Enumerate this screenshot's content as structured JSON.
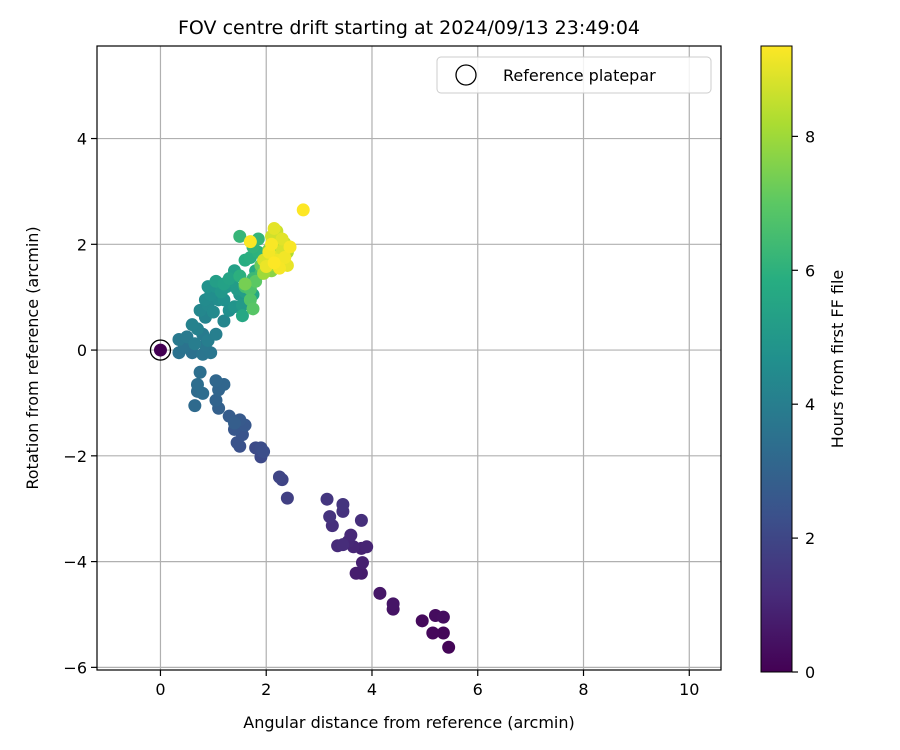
{
  "chart_data": {
    "type": "scatter",
    "title": "FOV centre drift starting at 2024/09/13 23:49:04",
    "xlabel": "Angular distance from reference (arcmin)",
    "ylabel": "Rotation from reference (arcmin)",
    "xlim": [
      -1.2,
      10.6
    ],
    "ylim": [
      -6.05,
      5.75
    ],
    "xticks": [
      0,
      2,
      4,
      6,
      8,
      10
    ],
    "yticks": [
      -6,
      -4,
      -2,
      0,
      2,
      4
    ],
    "xtick_labels": [
      "0",
      "2",
      "4",
      "6",
      "8",
      "10"
    ],
    "ytick_labels": [
      "−6",
      "−4",
      "−2",
      "0",
      "2",
      "4"
    ],
    "grid": true,
    "colorbar": {
      "label": "Hours from first FF file",
      "range": [
        0,
        9.35
      ],
      "ticks": [
        0,
        2,
        4,
        6,
        8
      ],
      "tick_labels": [
        "0",
        "2",
        "4",
        "6",
        "8"
      ],
      "colormap": "viridis"
    },
    "legend": {
      "position": "top-right",
      "entries": [
        {
          "label": "Reference platepar",
          "marker": "open-circle"
        }
      ]
    },
    "reference_point": {
      "x": 0,
      "y": 0,
      "t": 0
    },
    "points": [
      [
        5.45,
        -5.62,
        0.1
      ],
      [
        5.35,
        -5.35,
        0.15
      ],
      [
        5.15,
        -5.35,
        0.2
      ],
      [
        4.95,
        -5.12,
        0.25
      ],
      [
        5.2,
        -5.02,
        0.3
      ],
      [
        5.35,
        -5.05,
        0.35
      ],
      [
        4.4,
        -4.9,
        0.5
      ],
      [
        4.4,
        -4.8,
        0.55
      ],
      [
        4.15,
        -4.6,
        0.6
      ],
      [
        3.8,
        -4.22,
        0.75
      ],
      [
        3.7,
        -4.22,
        0.8
      ],
      [
        3.82,
        -4.02,
        0.85
      ],
      [
        3.8,
        -3.75,
        0.9
      ],
      [
        3.9,
        -3.72,
        0.95
      ],
      [
        3.65,
        -3.72,
        1.0
      ],
      [
        3.55,
        -3.62,
        1.05
      ],
      [
        3.6,
        -3.5,
        1.1
      ],
      [
        3.35,
        -3.7,
        1.15
      ],
      [
        3.45,
        -3.68,
        1.2
      ],
      [
        3.8,
        -3.22,
        1.25
      ],
      [
        3.25,
        -3.32,
        1.3
      ],
      [
        3.45,
        -3.05,
        1.35
      ],
      [
        3.2,
        -3.15,
        1.4
      ],
      [
        3.45,
        -2.92,
        1.45
      ],
      [
        3.15,
        -2.82,
        1.5
      ],
      [
        2.4,
        -2.8,
        1.8
      ],
      [
        2.3,
        -2.45,
        1.9
      ],
      [
        2.25,
        -2.4,
        1.95
      ],
      [
        1.9,
        -2.02,
        2.1
      ],
      [
        1.8,
        -1.85,
        2.15
      ],
      [
        1.9,
        -1.85,
        2.2
      ],
      [
        1.95,
        -1.92,
        2.25
      ],
      [
        1.5,
        -1.82,
        2.35
      ],
      [
        1.45,
        -1.75,
        2.4
      ],
      [
        1.55,
        -1.6,
        2.45
      ],
      [
        1.4,
        -1.5,
        2.55
      ],
      [
        1.6,
        -1.42,
        2.6
      ],
      [
        1.5,
        -1.32,
        2.65
      ],
      [
        1.3,
        -1.25,
        2.75
      ],
      [
        1.4,
        -1.38,
        2.8
      ],
      [
        1.1,
        -1.1,
        2.9
      ],
      [
        1.05,
        -0.95,
        3.0
      ],
      [
        1.1,
        -0.75,
        3.05
      ],
      [
        1.2,
        -0.65,
        3.1
      ],
      [
        1.05,
        -0.58,
        3.15
      ],
      [
        0.65,
        -1.05,
        3.25
      ],
      [
        0.7,
        -0.78,
        3.3
      ],
      [
        0.8,
        -0.82,
        3.35
      ],
      [
        0.7,
        -0.65,
        3.4
      ],
      [
        0.75,
        -0.42,
        3.45
      ],
      [
        0.6,
        -0.05,
        3.5
      ],
      [
        0.35,
        -0.05,
        3.55
      ],
      [
        0.45,
        0.05,
        3.6
      ],
      [
        0.8,
        -0.08,
        3.65
      ],
      [
        0.95,
        -0.05,
        3.7
      ],
      [
        0.85,
        0.1,
        3.75
      ],
      [
        0.35,
        0.2,
        3.8
      ],
      [
        0.5,
        0.25,
        3.85
      ],
      [
        0.8,
        0.3,
        3.9
      ],
      [
        0.65,
        0.12,
        3.95
      ],
      [
        0.9,
        0.18,
        4.0
      ],
      [
        1.05,
        0.3,
        4.05
      ],
      [
        0.7,
        0.4,
        4.1
      ],
      [
        0.6,
        0.48,
        4.15
      ],
      [
        0.85,
        0.62,
        4.2
      ],
      [
        1.2,
        0.55,
        4.3
      ],
      [
        0.75,
        0.75,
        4.35
      ],
      [
        0.9,
        0.85,
        4.4
      ],
      [
        1.0,
        0.72,
        4.45
      ],
      [
        0.85,
        0.95,
        4.5
      ],
      [
        1.1,
        0.95,
        4.55
      ],
      [
        0.95,
        1.05,
        4.6
      ],
      [
        1.3,
        0.75,
        4.65
      ],
      [
        1.2,
        0.95,
        4.7
      ],
      [
        0.9,
        1.2,
        4.75
      ],
      [
        1.05,
        1.2,
        4.8
      ],
      [
        1.4,
        0.82,
        4.85
      ],
      [
        1.5,
        1.05,
        4.9
      ],
      [
        1.15,
        1.1,
        4.95
      ],
      [
        1.25,
        1.2,
        5.0
      ],
      [
        1.55,
        0.85,
        5.05
      ],
      [
        1.45,
        1.15,
        5.1
      ],
      [
        1.35,
        1.3,
        5.15
      ],
      [
        1.6,
        1.1,
        5.2
      ],
      [
        1.05,
        1.3,
        5.25
      ],
      [
        1.4,
        1.5,
        5.3
      ],
      [
        1.2,
        1.25,
        5.35
      ],
      [
        1.5,
        1.4,
        5.4
      ],
      [
        1.3,
        1.35,
        5.45
      ],
      [
        1.65,
        1.25,
        5.5
      ],
      [
        1.75,
        1.05,
        5.55
      ],
      [
        1.55,
        0.65,
        5.6
      ],
      [
        1.8,
        1.5,
        5.7
      ],
      [
        1.9,
        1.6,
        5.8
      ],
      [
        1.6,
        1.7,
        5.85
      ],
      [
        1.7,
        1.75,
        5.9
      ],
      [
        1.5,
        1.4,
        5.95
      ],
      [
        1.85,
        1.85,
        6.0
      ],
      [
        1.95,
        1.8,
        6.05
      ],
      [
        1.75,
        1.95,
        6.1
      ],
      [
        1.85,
        2.1,
        6.15
      ],
      [
        1.5,
        2.15,
        6.2
      ],
      [
        1.75,
        1.35,
        6.3
      ],
      [
        1.9,
        1.45,
        6.4
      ],
      [
        1.6,
        1.2,
        6.5
      ],
      [
        1.95,
        1.5,
        6.55
      ],
      [
        2.0,
        1.7,
        6.6
      ],
      [
        1.7,
        1.15,
        6.7
      ],
      [
        1.7,
        0.95,
        6.8
      ],
      [
        1.75,
        0.78,
        6.9
      ],
      [
        1.8,
        1.3,
        7.0
      ],
      [
        2.05,
        1.75,
        7.1
      ],
      [
        1.9,
        1.6,
        7.2
      ],
      [
        2.15,
        1.85,
        7.3
      ],
      [
        1.6,
        1.25,
        7.4
      ],
      [
        2.05,
        1.9,
        7.5
      ],
      [
        2.25,
        1.95,
        7.6
      ],
      [
        2.1,
        1.5,
        7.7
      ],
      [
        2.3,
        1.7,
        7.8
      ],
      [
        2.2,
        1.8,
        7.9
      ],
      [
        1.95,
        1.45,
        8.0
      ],
      [
        2.05,
        1.6,
        8.1
      ],
      [
        2.15,
        2.05,
        8.2
      ],
      [
        2.4,
        1.85,
        8.3
      ],
      [
        2.25,
        1.62,
        8.4
      ],
      [
        2.35,
        2.02,
        8.5
      ],
      [
        2.2,
        2.25,
        8.6
      ],
      [
        2.1,
        2.15,
        8.7
      ],
      [
        2.3,
        1.88,
        8.8
      ],
      [
        1.95,
        1.7,
        8.85
      ],
      [
        2.1,
        1.78,
        8.9
      ],
      [
        2.3,
        2.1,
        8.95
      ],
      [
        2.15,
        2.3,
        9.0
      ],
      [
        2.4,
        1.6,
        9.05
      ],
      [
        2.0,
        1.58,
        9.1
      ],
      [
        2.2,
        1.7,
        9.15
      ],
      [
        2.35,
        1.75,
        9.2
      ],
      [
        2.05,
        1.85,
        9.22
      ],
      [
        2.25,
        1.55,
        9.25
      ],
      [
        2.45,
        1.95,
        9.28
      ],
      [
        2.1,
        2.0,
        9.3
      ],
      [
        1.7,
        2.05,
        9.32
      ],
      [
        2.7,
        2.65,
        9.35
      ],
      [
        2.15,
        1.65,
        9.35
      ]
    ]
  }
}
